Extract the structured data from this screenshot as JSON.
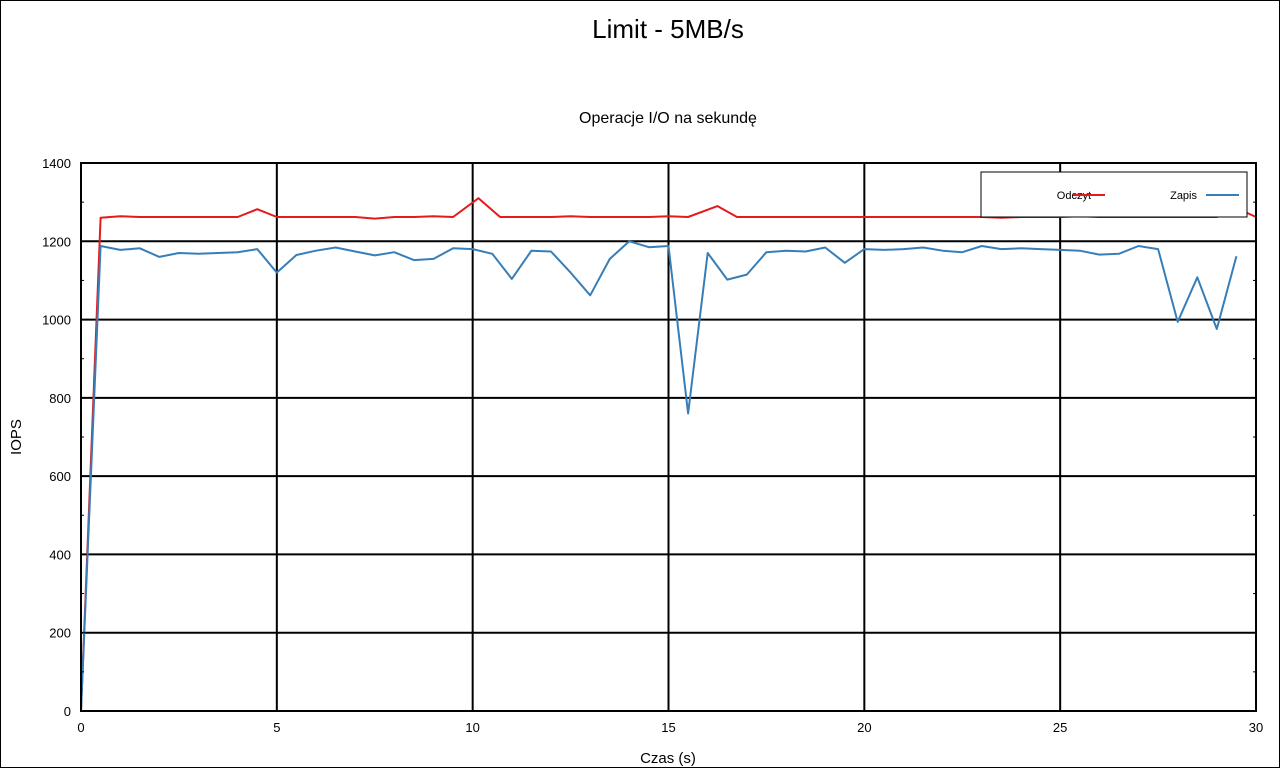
{
  "chart_data": {
    "type": "line",
    "title": "Limit - 5MB/s",
    "subtitle": "Operacje I/O na sekundę",
    "xlabel": "Czas (s)",
    "ylabel": "IOPS",
    "xlim": [
      0,
      30
    ],
    "ylim": [
      0,
      1400
    ],
    "xticks": [
      0,
      5,
      10,
      15,
      20,
      25,
      30
    ],
    "yticks": [
      0,
      200,
      400,
      600,
      800,
      1000,
      1200,
      1400
    ],
    "grid": true,
    "legend_position": "top-right",
    "series": [
      {
        "name": "Odczyt",
        "color": "#e41a1c",
        "x": [
          0,
          0.5,
          1,
          1.5,
          2,
          2.5,
          3,
          3.5,
          4,
          4.5,
          5,
          5.5,
          6,
          6.5,
          7,
          7.5,
          8,
          8.5,
          9,
          9.5,
          10.15,
          10.7,
          11,
          11.5,
          12,
          12.5,
          13,
          13.5,
          14,
          14.5,
          15,
          15.5,
          16.25,
          16.75,
          17,
          17.5,
          18,
          18.5,
          19,
          19.5,
          20,
          20.5,
          21,
          21.5,
          22,
          22.5,
          23,
          23.5,
          24,
          24.5,
          25,
          25.5,
          26,
          26.5,
          27,
          27.5,
          28,
          28.5,
          29,
          29.5,
          30
        ],
        "values": [
          0,
          1260,
          1264,
          1262,
          1262,
          1262,
          1262,
          1262,
          1262,
          1282,
          1262,
          1262,
          1262,
          1262,
          1262,
          1258,
          1262,
          1262,
          1264,
          1262,
          1310,
          1262,
          1262,
          1262,
          1262,
          1264,
          1262,
          1262,
          1262,
          1262,
          1264,
          1262,
          1290,
          1262,
          1262,
          1262,
          1262,
          1262,
          1262,
          1262,
          1262,
          1262,
          1262,
          1262,
          1262,
          1262,
          1262,
          1260,
          1262,
          1262,
          1262,
          1264,
          1262,
          1262,
          1262,
          1262,
          1262,
          1262,
          1262,
          1285,
          1262
        ]
      },
      {
        "name": "Zapis",
        "color": "#377eb8",
        "x": [
          0,
          0.5,
          1,
          1.5,
          2,
          2.5,
          3,
          3.5,
          4,
          4.5,
          5,
          5.5,
          6,
          6.5,
          7,
          7.5,
          8,
          8.5,
          9,
          9.5,
          10,
          10.5,
          11,
          11.5,
          12,
          12.5,
          13,
          13.5,
          14,
          14.5,
          15,
          15.5,
          16,
          16.5,
          17,
          17.5,
          18,
          18.5,
          19,
          19.5,
          20,
          20.5,
          21,
          21.5,
          22,
          22.5,
          23,
          23.5,
          24,
          24.5,
          25,
          25.5,
          26,
          26.5,
          27,
          27.5,
          28,
          28.5,
          29,
          29.5
        ],
        "values": [
          0,
          1188,
          1178,
          1182,
          1160,
          1170,
          1168,
          1170,
          1172,
          1180,
          1120,
          1165,
          1176,
          1184,
          1174,
          1164,
          1172,
          1152,
          1155,
          1182,
          1180,
          1168,
          1104,
          1176,
          1174,
          1120,
          1062,
          1155,
          1200,
          1185,
          1188,
          760,
          1170,
          1102,
          1115,
          1172,
          1176,
          1174,
          1184,
          1145,
          1180,
          1178,
          1180,
          1184,
          1176,
          1172,
          1188,
          1180,
          1182,
          1180,
          1178,
          1176,
          1166,
          1168,
          1188,
          1180,
          994,
          1108,
          976,
          1162
        ]
      }
    ]
  }
}
